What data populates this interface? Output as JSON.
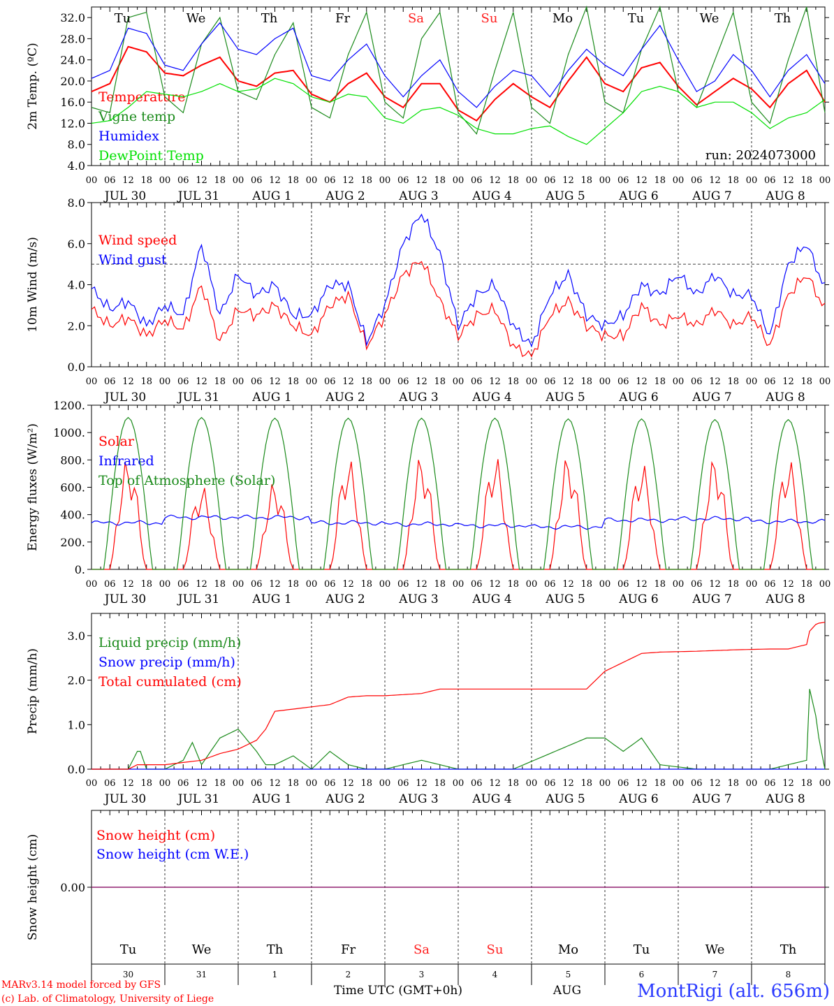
{
  "colors": {
    "temperature": "#ff0000",
    "vigne": "#1a8a1a",
    "humidex": "#0000ff",
    "dewpoint": "#00e000",
    "weekend": "#ff2020",
    "footer_blue": "#2b3bff",
    "axis": "#000000",
    "snow_line": "#7a1a7a"
  },
  "days": {
    "weekday_labels": [
      "Tu",
      "We",
      "Th",
      "Fr",
      "Sa",
      "Su",
      "Mo",
      "Tu",
      "We",
      "Th"
    ],
    "weekend_flags": [
      false,
      false,
      false,
      false,
      true,
      true,
      false,
      false,
      false,
      false
    ],
    "date_labels": [
      "JUL 30",
      "JUL 31",
      "AUG  1",
      "AUG  2",
      "AUG  3",
      "AUG  4",
      "AUG  5",
      "AUG  6",
      "AUG  7",
      "AUG  8"
    ],
    "hour_labels": [
      "00",
      "06",
      "12",
      "18"
    ],
    "end_hour_label": "00",
    "day_numbers": [
      "30",
      "31",
      "1",
      "2",
      "3",
      "4",
      "5",
      "6",
      "7",
      "8"
    ],
    "month_label": "AUG"
  },
  "chart_data": [
    {
      "type": "line",
      "ylabel": "2m Temp. (ºC)",
      "ylim": [
        4,
        34
      ],
      "yticks": [
        "4.0",
        "8.0",
        "12.0",
        "16.0",
        "20.0",
        "24.0",
        "28.0",
        "32.0"
      ],
      "yticks_values": [
        4,
        8,
        12,
        16,
        20,
        24,
        28,
        32
      ],
      "annotation": "run: 2024073000",
      "series": [
        {
          "name": "Temperature",
          "color": "#ff0000",
          "x": [
            0,
            6,
            12,
            18,
            24,
            30,
            36,
            42,
            48,
            54,
            60,
            66,
            72,
            78,
            84,
            90,
            96,
            102,
            108,
            114,
            120,
            126,
            132,
            138,
            144,
            150,
            156,
            162,
            168,
            174,
            180,
            186,
            192,
            198,
            204,
            210,
            216,
            222,
            228,
            234,
            240
          ],
          "values": [
            18,
            19.5,
            26.5,
            25.5,
            21.5,
            21,
            23,
            24.5,
            20,
            19,
            21.5,
            22,
            17.5,
            16,
            19.5,
            21.5,
            17,
            15,
            19.5,
            19.5,
            14.5,
            12.5,
            16.5,
            19.5,
            17,
            15,
            20,
            24.5,
            19.5,
            18,
            22.5,
            23.5,
            19,
            15.5,
            18,
            20.5,
            18.5,
            15,
            19.5,
            22,
            16
          ]
        },
        {
          "name": "Vigne temp",
          "color": "#1a8a1a",
          "x": [
            0,
            6,
            12,
            18,
            24,
            30,
            36,
            42,
            48,
            54,
            60,
            66,
            72,
            78,
            84,
            90,
            96,
            102,
            108,
            114,
            120,
            126,
            132,
            138,
            144,
            150,
            156,
            162,
            168,
            174,
            180,
            186,
            192,
            198,
            204,
            210,
            216,
            222,
            228,
            234,
            240
          ],
          "values": [
            15,
            14,
            32,
            33,
            17,
            14,
            27,
            32,
            18,
            16.5,
            25,
            31,
            15,
            13,
            25,
            33,
            16,
            13,
            28,
            33,
            14,
            10,
            22,
            33,
            15,
            12,
            25,
            34,
            16,
            14,
            26,
            34,
            18,
            15,
            24,
            33,
            16,
            12,
            24,
            34,
            14
          ]
        },
        {
          "name": "Humidex",
          "color": "#0000ff",
          "x": [
            0,
            6,
            12,
            18,
            24,
            30,
            36,
            42,
            48,
            54,
            60,
            66,
            72,
            78,
            84,
            90,
            96,
            102,
            108,
            114,
            120,
            126,
            132,
            138,
            144,
            150,
            156,
            162,
            168,
            174,
            180,
            186,
            192,
            198,
            204,
            210,
            216,
            222,
            228,
            234,
            240
          ],
          "values": [
            20.5,
            22,
            30,
            29,
            23,
            22,
            27,
            31,
            26,
            25,
            28,
            30,
            21,
            20,
            24,
            27,
            21,
            17,
            21,
            24,
            18,
            15,
            19,
            22,
            21,
            17,
            22,
            26,
            23,
            21,
            26,
            30.5,
            24,
            18,
            20,
            25,
            22,
            17,
            22,
            25,
            19.5
          ]
        },
        {
          "name": "DewPoint Temp",
          "color": "#00e000",
          "x": [
            0,
            6,
            12,
            18,
            24,
            30,
            36,
            42,
            48,
            54,
            60,
            66,
            72,
            78,
            84,
            90,
            96,
            102,
            108,
            114,
            120,
            126,
            132,
            138,
            144,
            150,
            156,
            162,
            168,
            174,
            180,
            186,
            192,
            198,
            204,
            210,
            216,
            222,
            228,
            234,
            240
          ],
          "values": [
            12,
            12.5,
            15,
            18,
            17.5,
            17,
            18,
            19.5,
            18,
            18.5,
            20.5,
            19.5,
            17,
            16,
            17.5,
            17,
            13,
            12,
            14.5,
            15,
            13.5,
            11,
            10,
            10,
            11,
            11.5,
            9.5,
            8,
            11,
            14,
            18,
            19,
            18,
            15,
            16,
            16,
            14,
            11,
            13,
            14,
            16.5
          ]
        }
      ]
    },
    {
      "type": "line",
      "ylabel": "10m Wind (m/s)",
      "ylim": [
        0,
        8
      ],
      "yticks": [
        "0.0",
        "2.0",
        "4.0",
        "6.0",
        "8.0"
      ],
      "yticks_values": [
        0,
        2,
        4,
        6,
        8
      ],
      "reference_line": 5,
      "series": [
        {
          "name": "Wind speed",
          "color": "#ff0000",
          "x": [
            0,
            6,
            12,
            18,
            24,
            30,
            36,
            42,
            48,
            54,
            60,
            66,
            72,
            78,
            84,
            90,
            96,
            102,
            108,
            114,
            120,
            126,
            132,
            138,
            144,
            150,
            156,
            162,
            168,
            174,
            180,
            186,
            192,
            198,
            204,
            210,
            216,
            222,
            228,
            234,
            240
          ],
          "values": [
            2.8,
            2,
            2.4,
            1.5,
            2.3,
            1.8,
            4,
            1.2,
            2.8,
            2.5,
            3,
            2,
            1.5,
            3,
            3.5,
            1,
            2.5,
            4.5,
            5.2,
            3.2,
            1.5,
            2.5,
            2.8,
            1,
            0.5,
            2.5,
            3.2,
            2,
            1.5,
            1.5,
            3,
            2,
            2.5,
            2,
            2.8,
            2,
            2.5,
            1,
            3.5,
            4.5,
            2.8
          ]
        },
        {
          "name": "Wind gust",
          "color": "#0000ff",
          "x": [
            0,
            6,
            12,
            18,
            24,
            30,
            36,
            42,
            48,
            54,
            60,
            66,
            72,
            78,
            84,
            90,
            96,
            102,
            108,
            114,
            120,
            126,
            132,
            138,
            144,
            150,
            156,
            162,
            168,
            174,
            180,
            186,
            192,
            198,
            204,
            210,
            216,
            222,
            228,
            234,
            240
          ],
          "values": [
            3.8,
            2.8,
            3.2,
            2,
            3,
            2.5,
            6,
            2.5,
            4.5,
            3.5,
            4,
            2.5,
            2.5,
            4,
            4,
            1.2,
            3,
            6,
            7.5,
            5.5,
            2,
            3.5,
            4,
            2,
            1,
            3.5,
            4.5,
            2.5,
            2,
            2.5,
            4,
            3.5,
            4.5,
            3.5,
            4.5,
            3.5,
            3.5,
            1.5,
            5,
            6,
            3.8
          ]
        }
      ]
    },
    {
      "type": "line",
      "ylabel": "Energy fluxes (W/m²)",
      "ylim": [
        0,
        1200
      ],
      "yticks": [
        "0.",
        "200.",
        "400.",
        "600.",
        "800.",
        "1000.",
        "1200."
      ],
      "yticks_values": [
        0,
        200,
        400,
        600,
        800,
        1000,
        1200
      ],
      "series": [
        {
          "name": "Solar",
          "color": "#ff0000",
          "daily_peaks": [
            820,
            620,
            650,
            820,
            840,
            840,
            840,
            790,
            830,
            820
          ]
        },
        {
          "name": "Infrared",
          "color": "#0000ff",
          "daily_levels": [
            340,
            380,
            380,
            340,
            330,
            320,
            310,
            360,
            370,
            350
          ]
        },
        {
          "name": "Top of Atmosphere (Solar)",
          "color": "#1a8a1a",
          "daily_peaks": [
            1110,
            1110,
            1105,
            1105,
            1105,
            1105,
            1100,
            1100,
            1095,
            1095
          ]
        }
      ]
    },
    {
      "type": "line",
      "ylabel": "Precip (mm/h)",
      "ylim": [
        0,
        3.5
      ],
      "yticks": [
        "0.0",
        "1.0",
        "2.0",
        "3.0"
      ],
      "yticks_values": [
        0,
        1,
        2,
        3
      ],
      "series": [
        {
          "name": "Liquid precip (mm/h)",
          "color": "#1a8a1a",
          "x": [
            0,
            12,
            15,
            16,
            18,
            24,
            30,
            33,
            36,
            42,
            48,
            54,
            57,
            60,
            66,
            72,
            78,
            84,
            90,
            96,
            108,
            114,
            120,
            138,
            162,
            168,
            174,
            180,
            186,
            198,
            210,
            222,
            234,
            235,
            237,
            238,
            240
          ],
          "values": [
            0,
            0,
            0.4,
            0.4,
            0,
            0,
            0.2,
            0.6,
            0.1,
            0.7,
            0.9,
            0.4,
            0.1,
            0.1,
            0.3,
            0,
            0.4,
            0.1,
            0,
            0,
            0.2,
            0.1,
            0,
            0,
            0.7,
            0.7,
            0.4,
            0.7,
            0.1,
            0,
            0,
            0,
            0.2,
            1.8,
            1.2,
            0.7,
            0
          ]
        },
        {
          "name": "Snow precip (mm/h)",
          "color": "#0000ff",
          "x": [
            0,
            240
          ],
          "values": [
            0,
            0
          ]
        },
        {
          "name": "Total cumulated (cm)",
          "color": "#ff0000",
          "x": [
            0,
            12,
            15,
            18,
            24,
            30,
            36,
            42,
            48,
            54,
            57,
            60,
            66,
            72,
            78,
            84,
            90,
            96,
            108,
            114,
            120,
            138,
            162,
            168,
            174,
            180,
            186,
            198,
            210,
            222,
            228,
            234,
            235,
            237,
            238,
            240
          ],
          "values": [
            0,
            0,
            0.1,
            0.1,
            0.1,
            0.15,
            0.2,
            0.35,
            0.45,
            0.65,
            0.9,
            1.3,
            1.35,
            1.4,
            1.45,
            1.62,
            1.65,
            1.65,
            1.7,
            1.8,
            1.8,
            1.8,
            1.8,
            2.2,
            2.4,
            2.6,
            2.63,
            2.65,
            2.68,
            2.7,
            2.7,
            2.8,
            3.1,
            3.25,
            3.28,
            3.3
          ]
        }
      ]
    },
    {
      "type": "line",
      "ylabel": "Snow height (cm)",
      "yticks": [
        "0.00"
      ],
      "yticks_values": [
        0
      ],
      "series": [
        {
          "name": "Snow height (cm)",
          "color": "#ff0000",
          "x": [
            0,
            240
          ],
          "values": [
            0,
            0
          ]
        },
        {
          "name": "Snow height (cm W.E.)",
          "color": "#0000ff",
          "x": [
            0,
            240
          ],
          "values": [
            0,
            0
          ]
        }
      ]
    }
  ],
  "footer": {
    "xlabel": "Time UTC (GMT+0h)",
    "credit_line1": "MARv3.14 model forced by GFS",
    "credit_line2": "(c) Lab. of Climatology, University of Liege",
    "station": "MontRigi (alt. 656m)"
  }
}
